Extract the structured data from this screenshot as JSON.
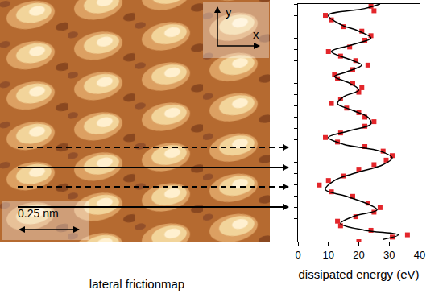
{
  "chart_data": {
    "type": "scatter",
    "x_label": "dissipated energy (eV)",
    "xlim": [
      0,
      40
    ],
    "xticks": [
      0,
      10,
      20,
      30,
      40
    ],
    "ylim": [
      0,
      1.05
    ],
    "yticks": [
      0,
      0.05,
      0.1,
      0.15,
      0.2,
      0.25,
      0.3,
      0.35,
      0.4,
      0.45,
      0.5,
      0.55,
      0.6,
      0.65,
      0.7,
      0.75,
      0.8,
      0.85,
      0.9,
      0.95,
      1,
      1.05
    ],
    "tick_labels": "x",
    "grid": false,
    "series": [
      {
        "type": "scatter",
        "marker": "square",
        "color": "#e3262b",
        "x": [
          24,
          25,
          9,
          11,
          15,
          21,
          24,
          22,
          17,
          10,
          14,
          19,
          23,
          18,
          12,
          13,
          18,
          21,
          20,
          14,
          11,
          16,
          20,
          22,
          25,
          22,
          14,
          9,
          13,
          22,
          28,
          31,
          29,
          25,
          20,
          15,
          10,
          7,
          11,
          18,
          23,
          27,
          25,
          19,
          13,
          14,
          24,
          36,
          31,
          20
        ],
        "y": [
          1.04,
          1.02,
          1.0,
          0.98,
          0.95,
          0.93,
          0.91,
          0.89,
          0.86,
          0.84,
          0.82,
          0.8,
          0.78,
          0.76,
          0.74,
          0.72,
          0.7,
          0.68,
          0.66,
          0.63,
          0.61,
          0.59,
          0.57,
          0.55,
          0.53,
          0.51,
          0.48,
          0.46,
          0.44,
          0.42,
          0.4,
          0.38,
          0.36,
          0.34,
          0.32,
          0.29,
          0.27,
          0.25,
          0.22,
          0.2,
          0.17,
          0.15,
          0.13,
          0.11,
          0.09,
          0.07,
          0.05,
          0.03,
          0.02,
          0
        ]
      },
      {
        "type": "line",
        "line_style": "solid",
        "color": "#000000",
        "x": [
          27,
          22,
          10,
          14,
          20,
          24,
          18,
          11,
          18,
          21,
          16,
          12,
          17,
          20,
          15,
          13,
          18,
          23,
          24,
          17,
          10,
          15,
          27,
          31,
          28,
          18,
          12,
          9,
          16,
          24,
          26,
          18,
          14,
          22,
          33,
          28
        ],
        "y": [
          1.05,
          1.03,
          1.0,
          0.96,
          0.93,
          0.9,
          0.87,
          0.84,
          0.8,
          0.78,
          0.75,
          0.73,
          0.7,
          0.67,
          0.64,
          0.61,
          0.58,
          0.55,
          0.52,
          0.49,
          0.46,
          0.43,
          0.4,
          0.37,
          0.34,
          0.3,
          0.27,
          0.23,
          0.2,
          0.16,
          0.14,
          0.11,
          0.08,
          0.05,
          0.03,
          0.01
        ]
      }
    ]
  },
  "friction_map": {
    "caption": "lateral frictionmap",
    "scale_bar": "0.25 nm",
    "axes": [
      "x",
      "y"
    ]
  }
}
